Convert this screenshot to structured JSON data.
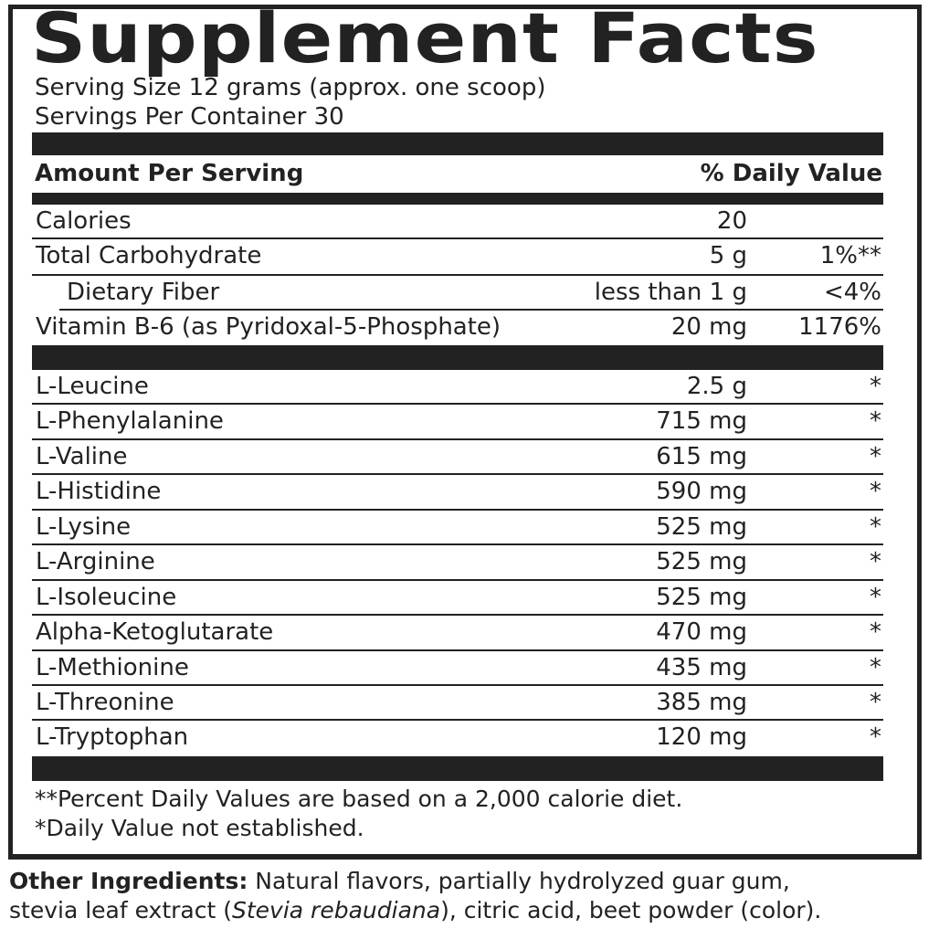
{
  "title": "Supplement Facts",
  "serving_size": "Serving Size 12 grams (approx. one scoop)",
  "servings_per_container": "Servings Per Container 30",
  "header": {
    "amount_per_serving": "Amount Per Serving",
    "daily_value": "% Daily Value"
  },
  "nutrients": [
    {
      "name": "Calories",
      "amount": "20",
      "dv": ""
    },
    {
      "name": "Total Carbohydrate",
      "amount": "5 g",
      "dv": "1%**"
    },
    {
      "name": "Dietary Fiber",
      "amount": "less than 1 g",
      "dv": "<4%"
    },
    {
      "name": "Vitamin B-6 (as Pyridoxal-5-Phosphate)",
      "amount": "20 mg",
      "dv": "1176%"
    }
  ],
  "amino_acids": [
    {
      "name": "L-Leucine",
      "amount": "2.5 g",
      "dv": "*"
    },
    {
      "name": "L-Phenylalanine",
      "amount": "715 mg",
      "dv": "*"
    },
    {
      "name": "L-Valine",
      "amount": "615 mg",
      "dv": "*"
    },
    {
      "name": "L-Histidine",
      "amount": "590 mg",
      "dv": "*"
    },
    {
      "name": "L-Lysine",
      "amount": "525 mg",
      "dv": "*"
    },
    {
      "name": "L-Arginine",
      "amount": "525 mg",
      "dv": "*"
    },
    {
      "name": "L-Isoleucine",
      "amount": "525 mg",
      "dv": "*"
    },
    {
      "name": "Alpha-Ketoglutarate",
      "amount": "470 mg",
      "dv": "*"
    },
    {
      "name": "L-Methionine",
      "amount": "435 mg",
      "dv": "*"
    },
    {
      "name": "L-Threonine",
      "amount": "385 mg",
      "dv": "*"
    },
    {
      "name": "L-Tryptophan",
      "amount": "120 mg",
      "dv": "*"
    }
  ],
  "footnotes": [
    "**Percent Daily Values are based on a 2,000 calorie diet.",
    "*Daily Value not established."
  ],
  "other_ingredients": {
    "label": "Other Ingredients:",
    "text_1": " Natural flavors, partially hydrolyzed guar gum,",
    "text_2a": "stevia leaf extract (",
    "text_2_italic": "Stevia rebaudiana",
    "text_2b": "), citric acid, beet powder (color)."
  }
}
